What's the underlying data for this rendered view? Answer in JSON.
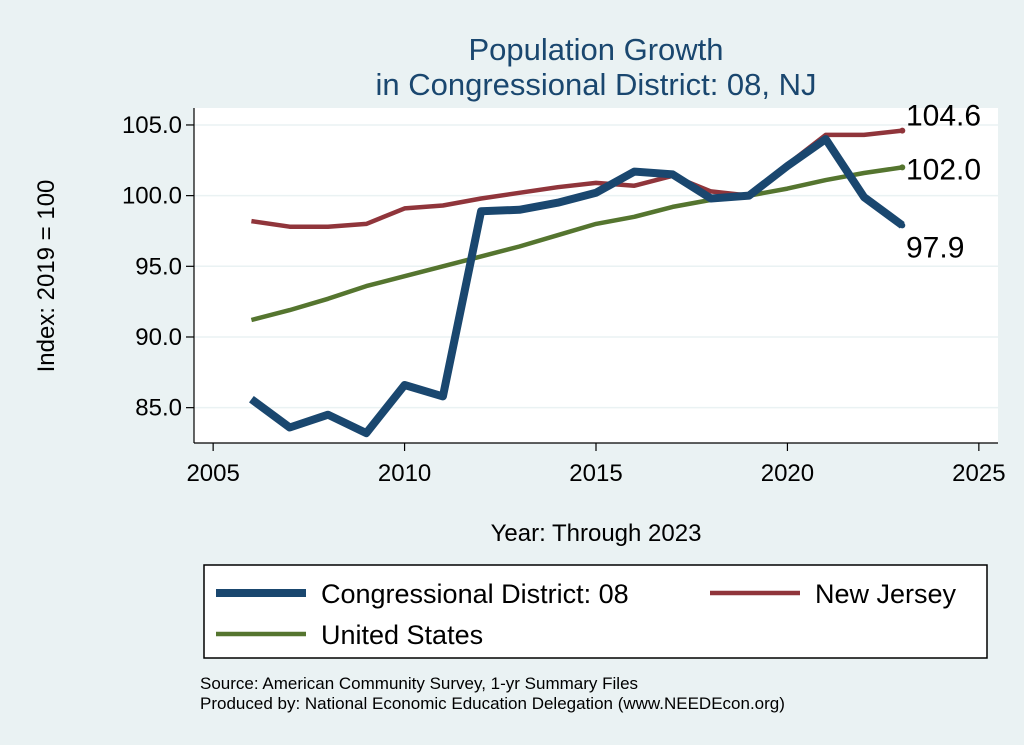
{
  "chart_data": {
    "type": "line",
    "title": [
      "Population Growth",
      "in Congressional District: 08, NJ"
    ],
    "xlabel": "Year: Through 2023",
    "ylabel": "Index: 2019 = 100",
    "xlim": [
      2004.5,
      2025.5
    ],
    "ylim": [
      82.5,
      106.2
    ],
    "xticks": [
      2005,
      2010,
      2015,
      2020,
      2025
    ],
    "xtick_labels": [
      "2005",
      "2010",
      "2015",
      "2020",
      "2025"
    ],
    "yticks": [
      85,
      90,
      95,
      100,
      105
    ],
    "ytick_labels": [
      "85.0",
      "90.0",
      "95.0",
      "100.0",
      "105.0"
    ],
    "grid": true,
    "x": [
      2006,
      2007,
      2008,
      2009,
      2010,
      2011,
      2012,
      2013,
      2014,
      2015,
      2016,
      2017,
      2018,
      2019,
      2020,
      2021,
      2022,
      2023
    ],
    "series": [
      {
        "name": "Congressional District: 08",
        "color": "#1a476f",
        "values": [
          85.6,
          83.6,
          84.5,
          83.2,
          86.6,
          85.8,
          98.9,
          99.0,
          99.5,
          100.2,
          101.7,
          101.5,
          99.8,
          100.0,
          102.1,
          104.0,
          99.9,
          97.9
        ],
        "end_label": "97.9"
      },
      {
        "name": "New Jersey",
        "color": "#90353b",
        "values": [
          98.2,
          97.8,
          97.8,
          98.0,
          99.1,
          99.3,
          99.8,
          100.2,
          100.6,
          100.9,
          100.7,
          101.4,
          100.3,
          100.0,
          102.2,
          104.3,
          104.3,
          104.6
        ],
        "end_label": "104.6"
      },
      {
        "name": "United States",
        "color": "#55752f",
        "values": [
          91.2,
          91.9,
          92.7,
          93.6,
          94.3,
          95.0,
          95.7,
          96.4,
          97.2,
          98.0,
          98.5,
          99.2,
          99.7,
          100.0,
          100.5,
          101.1,
          101.6,
          102.0
        ],
        "end_label": "102.0"
      }
    ],
    "legend": {
      "placement": "bottom",
      "entries": [
        "Congressional District: 08",
        "New Jersey",
        "United States"
      ]
    },
    "notes": [
      "Source: American Community Survey, 1-yr Summary Files",
      "Produced by: National Economic Education Delegation (www.NEEDEcon.org)"
    ]
  }
}
